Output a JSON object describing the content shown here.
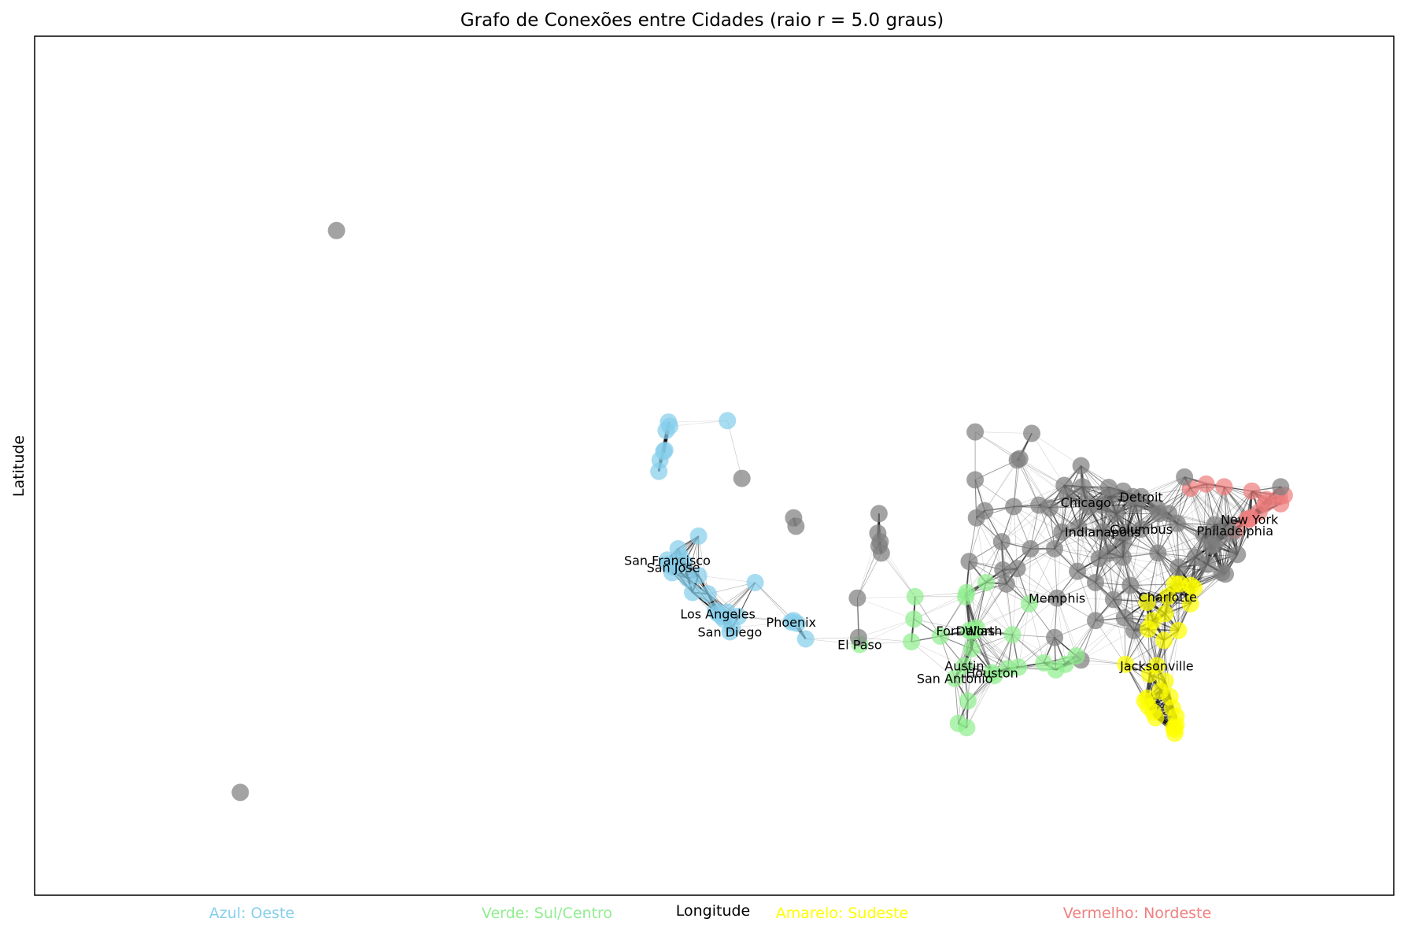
{
  "chart_data": {
    "type": "network",
    "title": "Grafo de Conexões entre Cidades (raio r = 5.0 graus)",
    "xlabel": "Longitude",
    "ylabel": "Latitude",
    "xlim": [
      -175,
      -62
    ],
    "ylim": [
      14,
      75
    ],
    "radius_deg": 5.0,
    "grid": false,
    "colors": {
      "oeste": "#87ceeb",
      "sul": "#90ee90",
      "sudeste": "#ffff00",
      "nordeste": "#f08080",
      "outro": "#808080",
      "edge": "#000000"
    },
    "legend": [
      {
        "label": "Azul: Oeste",
        "color": "#87ceeb"
      },
      {
        "label": "Verde: Sul/Centro",
        "color": "#90ee90"
      },
      {
        "label": "Amarelo: Sudeste",
        "color": "#ffff00"
      },
      {
        "label": "Vermelho: Nordeste",
        "color": "#f08080"
      }
    ],
    "labeled_cities": [
      {
        "name": "San Francisco",
        "lon": -122.4,
        "lat": 37.8
      },
      {
        "name": "San Jose",
        "lon": -121.9,
        "lat": 37.3
      },
      {
        "name": "Los Angeles",
        "lon": -118.2,
        "lat": 34.0
      },
      {
        "name": "San Diego",
        "lon": -117.2,
        "lat": 32.7
      },
      {
        "name": "Phoenix",
        "lon": -112.1,
        "lat": 33.4
      },
      {
        "name": "El Paso",
        "lon": -106.4,
        "lat": 31.8
      },
      {
        "name": "Fort Worth",
        "lon": -97.3,
        "lat": 32.8
      },
      {
        "name": "Dallas",
        "lon": -96.8,
        "lat": 32.8
      },
      {
        "name": "Austin",
        "lon": -97.7,
        "lat": 30.3
      },
      {
        "name": "San Antonio",
        "lon": -98.5,
        "lat": 29.4
      },
      {
        "name": "Houston",
        "lon": -95.4,
        "lat": 29.8
      },
      {
        "name": "Memphis",
        "lon": -90.0,
        "lat": 35.1
      },
      {
        "name": "Chicago",
        "lon": -87.6,
        "lat": 41.9
      },
      {
        "name": "Indianapolis",
        "lon": -86.2,
        "lat": 39.8
      },
      {
        "name": "Detroit",
        "lon": -83.0,
        "lat": 42.3
      },
      {
        "name": "Columbus",
        "lon": -83.0,
        "lat": 40.0
      },
      {
        "name": "Charlotte",
        "lon": -80.8,
        "lat": 35.2
      },
      {
        "name": "Jacksonville",
        "lon": -81.7,
        "lat": 30.3
      },
      {
        "name": "New York",
        "lon": -74.0,
        "lat": 40.7
      },
      {
        "name": "Philadelphia",
        "lon": -75.2,
        "lat": 39.9
      }
    ],
    "nodes": [
      {
        "lon": -149.9,
        "lat": 61.2,
        "g": "outro"
      },
      {
        "lon": -157.9,
        "lat": 21.3,
        "g": "outro"
      },
      {
        "lon": -122.7,
        "lat": 45.5,
        "g": "oeste"
      },
      {
        "lon": -122.6,
        "lat": 45.6,
        "g": "oeste"
      },
      {
        "lon": -122.3,
        "lat": 47.6,
        "g": "oeste"
      },
      {
        "lon": -122.2,
        "lat": 47.3,
        "g": "oeste"
      },
      {
        "lon": -122.5,
        "lat": 47.0,
        "g": "oeste"
      },
      {
        "lon": -123.0,
        "lat": 44.9,
        "g": "oeste"
      },
      {
        "lon": -123.1,
        "lat": 44.1,
        "g": "oeste"
      },
      {
        "lon": -117.4,
        "lat": 47.7,
        "g": "oeste"
      },
      {
        "lon": -116.2,
        "lat": 43.6,
        "g": "outro"
      },
      {
        "lon": -111.9,
        "lat": 40.8,
        "g": "outro"
      },
      {
        "lon": -111.7,
        "lat": 40.2,
        "g": "outro"
      },
      {
        "lon": -119.8,
        "lat": 39.5,
        "g": "oeste"
      },
      {
        "lon": -121.5,
        "lat": 38.6,
        "g": "oeste"
      },
      {
        "lon": -122.4,
        "lat": 37.8,
        "g": "oeste"
      },
      {
        "lon": -121.9,
        "lat": 37.3,
        "g": "oeste"
      },
      {
        "lon": -122.3,
        "lat": 37.5,
        "g": "oeste"
      },
      {
        "lon": -121.3,
        "lat": 38.0,
        "g": "oeste"
      },
      {
        "lon": -121.0,
        "lat": 37.6,
        "g": "oeste"
      },
      {
        "lon": -122.0,
        "lat": 36.9,
        "g": "oeste"
      },
      {
        "lon": -120.7,
        "lat": 36.5,
        "g": "oeste"
      },
      {
        "lon": -119.8,
        "lat": 36.7,
        "g": "oeste"
      },
      {
        "lon": -120.3,
        "lat": 35.5,
        "g": "oeste"
      },
      {
        "lon": -119.0,
        "lat": 35.4,
        "g": "oeste"
      },
      {
        "lon": -118.2,
        "lat": 34.0,
        "g": "oeste"
      },
      {
        "lon": -118.4,
        "lat": 34.2,
        "g": "oeste"
      },
      {
        "lon": -117.9,
        "lat": 33.8,
        "g": "oeste"
      },
      {
        "lon": -117.4,
        "lat": 34.1,
        "g": "oeste"
      },
      {
        "lon": -117.7,
        "lat": 33.6,
        "g": "oeste"
      },
      {
        "lon": -117.2,
        "lat": 32.7,
        "g": "oeste"
      },
      {
        "lon": -117.0,
        "lat": 33.0,
        "g": "oeste"
      },
      {
        "lon": -116.5,
        "lat": 33.8,
        "g": "oeste"
      },
      {
        "lon": -115.1,
        "lat": 36.2,
        "g": "oeste"
      },
      {
        "lon": -112.1,
        "lat": 33.4,
        "g": "oeste"
      },
      {
        "lon": -111.9,
        "lat": 33.5,
        "g": "oeste"
      },
      {
        "lon": -111.6,
        "lat": 33.3,
        "g": "oeste"
      },
      {
        "lon": -110.9,
        "lat": 32.2,
        "g": "oeste"
      },
      {
        "lon": -104.9,
        "lat": 39.7,
        "g": "outro"
      },
      {
        "lon": -104.8,
        "lat": 38.8,
        "g": "outro"
      },
      {
        "lon": -104.7,
        "lat": 39.1,
        "g": "outro"
      },
      {
        "lon": -104.6,
        "lat": 38.3,
        "g": "outro"
      },
      {
        "lon": -104.8,
        "lat": 41.1,
        "g": "outro"
      },
      {
        "lon": -106.6,
        "lat": 35.1,
        "g": "outro"
      },
      {
        "lon": -106.4,
        "lat": 31.8,
        "g": "sul"
      },
      {
        "lon": -106.5,
        "lat": 32.3,
        "g": "outro"
      },
      {
        "lon": -101.8,
        "lat": 35.2,
        "g": "sul"
      },
      {
        "lon": -101.9,
        "lat": 33.6,
        "g": "sul"
      },
      {
        "lon": -102.1,
        "lat": 32.0,
        "g": "sul"
      },
      {
        "lon": -99.7,
        "lat": 32.4,
        "g": "sul"
      },
      {
        "lon": -97.3,
        "lat": 32.8,
        "g": "sul"
      },
      {
        "lon": -96.8,
        "lat": 32.8,
        "g": "sul"
      },
      {
        "lon": -97.1,
        "lat": 32.7,
        "g": "sul"
      },
      {
        "lon": -96.7,
        "lat": 33.0,
        "g": "sul"
      },
      {
        "lon": -97.5,
        "lat": 35.5,
        "g": "sul"
      },
      {
        "lon": -97.6,
        "lat": 35.2,
        "g": "sul"
      },
      {
        "lon": -95.9,
        "lat": 36.2,
        "g": "sul"
      },
      {
        "lon": -97.7,
        "lat": 30.3,
        "g": "sul"
      },
      {
        "lon": -97.1,
        "lat": 31.5,
        "g": "sul"
      },
      {
        "lon": -98.5,
        "lat": 29.4,
        "g": "sul"
      },
      {
        "lon": -95.4,
        "lat": 29.8,
        "g": "sul"
      },
      {
        "lon": -95.2,
        "lat": 29.6,
        "g": "sul"
      },
      {
        "lon": -94.1,
        "lat": 30.1,
        "g": "sul"
      },
      {
        "lon": -97.4,
        "lat": 27.8,
        "g": "sul"
      },
      {
        "lon": -97.5,
        "lat": 25.9,
        "g": "sul"
      },
      {
        "lon": -98.2,
        "lat": 26.2,
        "g": "sul"
      },
      {
        "lon": -93.7,
        "lat": 32.5,
        "g": "sul"
      },
      {
        "lon": -92.3,
        "lat": 34.7,
        "g": "sul"
      },
      {
        "lon": -91.1,
        "lat": 30.5,
        "g": "sul"
      },
      {
        "lon": -90.1,
        "lat": 30.0,
        "g": "sul"
      },
      {
        "lon": -93.2,
        "lat": 30.2,
        "g": "sul"
      },
      {
        "lon": -90.0,
        "lat": 35.1,
        "g": "outro"
      },
      {
        "lon": -94.6,
        "lat": 39.1,
        "g": "outro"
      },
      {
        "lon": -96.0,
        "lat": 41.3,
        "g": "outro"
      },
      {
        "lon": -97.3,
        "lat": 37.7,
        "g": "outro"
      },
      {
        "lon": -96.7,
        "lat": 40.8,
        "g": "outro"
      },
      {
        "lon": -93.6,
        "lat": 41.6,
        "g": "outro"
      },
      {
        "lon": -93.3,
        "lat": 44.9,
        "g": "outro"
      },
      {
        "lon": -93.1,
        "lat": 45.0,
        "g": "outro"
      },
      {
        "lon": -96.8,
        "lat": 43.5,
        "g": "outro"
      },
      {
        "lon": -96.8,
        "lat": 46.9,
        "g": "outro"
      },
      {
        "lon": -92.1,
        "lat": 46.8,
        "g": "outro"
      },
      {
        "lon": -90.2,
        "lat": 38.6,
        "g": "outro"
      },
      {
        "lon": -93.3,
        "lat": 37.2,
        "g": "outro"
      },
      {
        "lon": -89.6,
        "lat": 39.8,
        "g": "outro"
      },
      {
        "lon": -89.4,
        "lat": 43.1,
        "g": "outro"
      },
      {
        "lon": -87.9,
        "lat": 43.0,
        "g": "outro"
      },
      {
        "lon": -87.6,
        "lat": 41.9,
        "g": "outro"
      },
      {
        "lon": -88.0,
        "lat": 44.5,
        "g": "outro"
      },
      {
        "lon": -86.2,
        "lat": 39.8,
        "g": "outro"
      },
      {
        "lon": -85.7,
        "lat": 38.3,
        "g": "outro"
      },
      {
        "lon": -86.8,
        "lat": 36.2,
        "g": "outro"
      },
      {
        "lon": -86.8,
        "lat": 33.5,
        "g": "outro"
      },
      {
        "lon": -88.0,
        "lat": 30.7,
        "g": "outro"
      },
      {
        "lon": -90.2,
        "lat": 32.3,
        "g": "outro"
      },
      {
        "lon": -84.5,
        "lat": 39.1,
        "g": "outro"
      },
      {
        "lon": -84.2,
        "lat": 39.8,
        "g": "outro"
      },
      {
        "lon": -83.0,
        "lat": 42.3,
        "g": "outro"
      },
      {
        "lon": -83.7,
        "lat": 42.3,
        "g": "outro"
      },
      {
        "lon": -83.5,
        "lat": 41.7,
        "g": "outro"
      },
      {
        "lon": -85.7,
        "lat": 42.96,
        "g": "outro"
      },
      {
        "lon": -83.0,
        "lat": 40.0,
        "g": "outro"
      },
      {
        "lon": -81.7,
        "lat": 41.5,
        "g": "outro"
      },
      {
        "lon": -81.5,
        "lat": 41.1,
        "g": "outro"
      },
      {
        "lon": -80.0,
        "lat": 40.4,
        "g": "outro"
      },
      {
        "lon": -84.4,
        "lat": 33.7,
        "g": "outro"
      },
      {
        "lon": -85.3,
        "lat": 35.0,
        "g": "outro"
      },
      {
        "lon": -83.9,
        "lat": 36.0,
        "g": "outro"
      },
      {
        "lon": -84.5,
        "lat": 38.0,
        "g": "outro"
      },
      {
        "lon": -81.6,
        "lat": 38.3,
        "g": "outro"
      },
      {
        "lon": -83.6,
        "lat": 32.8,
        "g": "outro"
      },
      {
        "lon": -82.4,
        "lat": 34.9,
        "g": "outro"
      },
      {
        "lon": -84.3,
        "lat": 30.4,
        "g": "sudeste"
      },
      {
        "lon": -81.1,
        "lat": 32.1,
        "g": "sudeste"
      },
      {
        "lon": -81.0,
        "lat": 34.0,
        "g": "sudeste"
      },
      {
        "lon": -80.8,
        "lat": 35.2,
        "g": "sudeste"
      },
      {
        "lon": -80.2,
        "lat": 36.1,
        "g": "sudeste"
      },
      {
        "lon": -79.8,
        "lat": 36.1,
        "g": "sudeste"
      },
      {
        "lon": -78.6,
        "lat": 35.8,
        "g": "sudeste"
      },
      {
        "lon": -78.9,
        "lat": 36.0,
        "g": "sudeste"
      },
      {
        "lon": -79.9,
        "lat": 32.8,
        "g": "sudeste"
      },
      {
        "lon": -78.9,
        "lat": 34.7,
        "g": "sudeste"
      },
      {
        "lon": -82.5,
        "lat": 34.8,
        "g": "sudeste"
      },
      {
        "lon": -82.0,
        "lat": 33.5,
        "g": "sudeste"
      },
      {
        "lon": -81.7,
        "lat": 30.3,
        "g": "sudeste"
      },
      {
        "lon": -81.4,
        "lat": 28.5,
        "g": "sudeste"
      },
      {
        "lon": -82.5,
        "lat": 28.0,
        "g": "sudeste"
      },
      {
        "lon": -82.7,
        "lat": 27.8,
        "g": "sudeste"
      },
      {
        "lon": -80.1,
        "lat": 26.1,
        "g": "sudeste"
      },
      {
        "lon": -80.2,
        "lat": 25.8,
        "g": "sudeste"
      },
      {
        "lon": -80.1,
        "lat": 26.7,
        "g": "sudeste"
      },
      {
        "lon": -81.8,
        "lat": 26.6,
        "g": "sudeste"
      },
      {
        "lon": -82.3,
        "lat": 29.7,
        "g": "sudeste"
      },
      {
        "lon": -81.0,
        "lat": 29.2,
        "g": "sudeste"
      },
      {
        "lon": -80.6,
        "lat": 28.1,
        "g": "sudeste"
      },
      {
        "lon": -80.2,
        "lat": 25.5,
        "g": "sudeste"
      },
      {
        "lon": -80.3,
        "lat": 25.9,
        "g": "sudeste"
      },
      {
        "lon": -80.4,
        "lat": 27.3,
        "g": "sudeste"
      },
      {
        "lon": -82.0,
        "lat": 27.0,
        "g": "sudeste"
      },
      {
        "lon": -82.4,
        "lat": 27.4,
        "g": "sudeste"
      },
      {
        "lon": -82.4,
        "lat": 32.9,
        "g": "sudeste"
      },
      {
        "lon": -77.5,
        "lat": 37.5,
        "g": "outro"
      },
      {
        "lon": -76.3,
        "lat": 36.9,
        "g": "outro"
      },
      {
        "lon": -76.0,
        "lat": 36.8,
        "g": "outro"
      },
      {
        "lon": -76.6,
        "lat": 39.3,
        "g": "outro"
      },
      {
        "lon": -77.0,
        "lat": 38.9,
        "g": "outro"
      },
      {
        "lon": -77.2,
        "lat": 38.8,
        "g": "outro"
      },
      {
        "lon": -74.0,
        "lat": 40.7,
        "g": "nordeste"
      },
      {
        "lon": -74.2,
        "lat": 40.7,
        "g": "nordeste"
      },
      {
        "lon": -73.9,
        "lat": 40.8,
        "g": "nordeste"
      },
      {
        "lon": -75.2,
        "lat": 39.9,
        "g": "nordeste"
      },
      {
        "lon": -73.8,
        "lat": 42.7,
        "g": "nordeste"
      },
      {
        "lon": -73.2,
        "lat": 41.2,
        "g": "nordeste"
      },
      {
        "lon": -72.7,
        "lat": 41.8,
        "g": "nordeste"
      },
      {
        "lon": -71.4,
        "lat": 41.8,
        "g": "nordeste"
      },
      {
        "lon": -71.1,
        "lat": 42.4,
        "g": "nordeste"
      },
      {
        "lon": -71.5,
        "lat": 42.3,
        "g": "nordeste"
      },
      {
        "lon": -72.6,
        "lat": 42.1,
        "g": "nordeste"
      },
      {
        "lon": -76.1,
        "lat": 43.0,
        "g": "nordeste"
      },
      {
        "lon": -77.6,
        "lat": 43.2,
        "g": "nordeste"
      },
      {
        "lon": -78.9,
        "lat": 42.9,
        "g": "nordeste"
      },
      {
        "lon": -79.4,
        "lat": 43.7,
        "g": "outro"
      },
      {
        "lon": -71.4,
        "lat": 43.0,
        "g": "outro"
      },
      {
        "lon": -75.5,
        "lat": 39.7,
        "g": "outro"
      },
      {
        "lon": -75.9,
        "lat": 40.3,
        "g": "outro"
      },
      {
        "lon": -76.9,
        "lat": 40.3,
        "g": "outro"
      },
      {
        "lon": -77.8,
        "lat": 39.6,
        "g": "outro"
      },
      {
        "lon": -75.0,
        "lat": 38.2,
        "g": "outro"
      },
      {
        "lon": -88.2,
        "lat": 40.1,
        "g": "outro"
      },
      {
        "lon": -87.3,
        "lat": 41.6,
        "g": "outro"
      },
      {
        "lon": -86.3,
        "lat": 41.7,
        "g": "outro"
      },
      {
        "lon": -85.1,
        "lat": 41.1,
        "g": "outro"
      },
      {
        "lon": -86.5,
        "lat": 37.9,
        "g": "outro"
      },
      {
        "lon": -88.3,
        "lat": 37.0,
        "g": "outro"
      },
      {
        "lon": -89.1,
        "lat": 42.3,
        "g": "outro"
      },
      {
        "lon": -90.6,
        "lat": 41.5,
        "g": "outro"
      },
      {
        "lon": -91.5,
        "lat": 41.7,
        "g": "outro"
      },
      {
        "lon": -94.5,
        "lat": 37.1,
        "g": "outro"
      },
      {
        "lon": -92.2,
        "lat": 38.6,
        "g": "outro"
      },
      {
        "lon": -94.2,
        "lat": 36.1,
        "g": "outro"
      },
      {
        "lon": -84.5,
        "lat": 42.7,
        "g": "outro"
      },
      {
        "lon": -85.6,
        "lat": 42.3,
        "g": "outro"
      },
      {
        "lon": -80.7,
        "lat": 41.1,
        "g": "outro"
      },
      {
        "lon": -79.9,
        "lat": 37.3,
        "g": "outro"
      },
      {
        "lon": -78.5,
        "lat": 38.0,
        "g": "outro"
      },
      {
        "lon": -88.4,
        "lat": 31.0,
        "g": "sul"
      },
      {
        "lon": -89.3,
        "lat": 30.4,
        "g": "sul"
      }
    ]
  }
}
